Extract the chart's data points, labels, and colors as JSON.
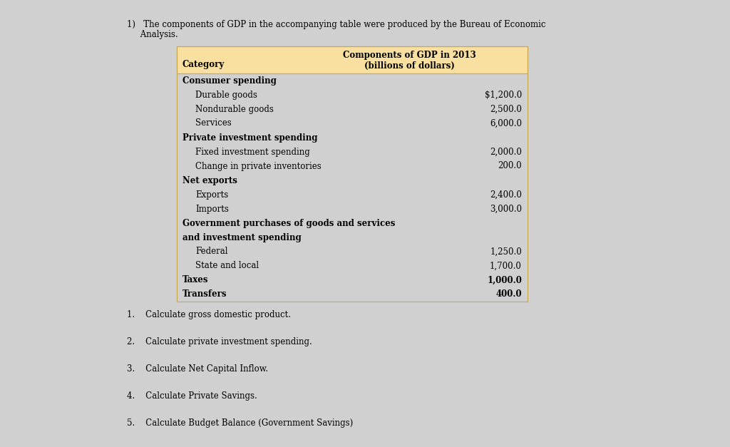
{
  "title_line1": "1)   The components of GDP in the accompanying table were produced by the Bureau of Economic",
  "title_line2": "     Analysis.",
  "table_header_col1": "Category",
  "table_header_col2": "Components of GDP in 2013\n(billions of dollars)",
  "header_bg": "#F9DFA0",
  "header_border": "#C8A84B",
  "rows": [
    {
      "label": "Consumer spending",
      "value": "",
      "bold": true,
      "indent": 0
    },
    {
      "label": "Durable goods",
      "value": "$1,200.0",
      "bold": false,
      "indent": 1
    },
    {
      "label": "Nondurable goods",
      "value": "2,500.0",
      "bold": false,
      "indent": 1
    },
    {
      "label": "Services",
      "value": "6,000.0",
      "bold": false,
      "indent": 1
    },
    {
      "label": "Private investment spending",
      "value": "",
      "bold": true,
      "indent": 0
    },
    {
      "label": "Fixed investment spending",
      "value": "2,000.0",
      "bold": false,
      "indent": 1
    },
    {
      "label": "Change in private inventories",
      "value": "200.0",
      "bold": false,
      "indent": 1
    },
    {
      "label": "Net exports",
      "value": "",
      "bold": true,
      "indent": 0
    },
    {
      "label": "Exports",
      "value": "2,400.0",
      "bold": false,
      "indent": 1
    },
    {
      "label": "Imports",
      "value": "3,000.0",
      "bold": false,
      "indent": 1
    },
    {
      "label": "Government purchases of goods and services",
      "value": "",
      "bold": true,
      "indent": 0,
      "multiline": true
    },
    {
      "label": "and investment spending",
      "value": "",
      "bold": true,
      "indent": 0,
      "multiline_cont": true
    },
    {
      "label": "Federal",
      "value": "1,250.0",
      "bold": false,
      "indent": 1
    },
    {
      "label": "State and local",
      "value": "1,700.0",
      "bold": false,
      "indent": 1
    },
    {
      "label": "Taxes",
      "value": "1,000.0",
      "bold": true,
      "indent": 0
    },
    {
      "label": "Transfers",
      "value": "400.0",
      "bold": true,
      "indent": 0
    }
  ],
  "questions": [
    "1.    Calculate gross domestic product.",
    "2.    Calculate private investment spending.",
    "3.    Calculate Net Capital Inflow.",
    "4.    Calculate Private Savings.",
    "5.    Calculate Budget Balance (Government Savings)"
  ],
  "bg_color": "#D0D0D0",
  "content_bg": "#FFFFFF",
  "top_bar_color": "#1F4E8C",
  "left_panel_color": "#C8C8C8",
  "right_panel_color": "#C8C8C8"
}
